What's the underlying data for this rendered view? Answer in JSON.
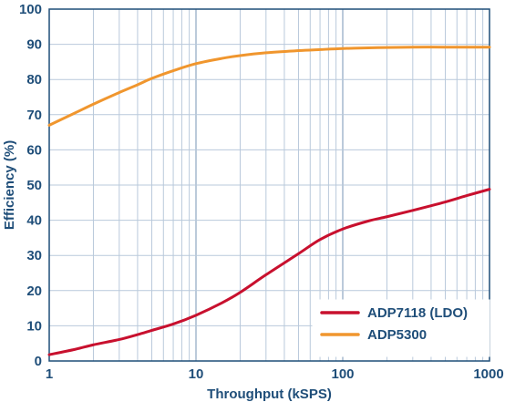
{
  "chart_data": {
    "type": "line",
    "xscale": "log",
    "xlim": [
      1,
      1000
    ],
    "ylim": [
      0,
      100
    ],
    "xlabel": "Throughput (kSPS)",
    "ylabel": "Efficiency (%)",
    "x_ticks": [
      "1",
      "10",
      "100",
      "1000"
    ],
    "y_ticks": [
      "0",
      "10",
      "20",
      "30",
      "40",
      "50",
      "60",
      "70",
      "80",
      "90",
      "100"
    ],
    "grid": true,
    "legend_position": "bottom-right",
    "series": [
      {
        "name": "ADP7118 (LDO)",
        "color": "#c8102e",
        "x": [
          1,
          1.5,
          2,
          3,
          4,
          5,
          7,
          10,
          15,
          20,
          30,
          50,
          70,
          100,
          150,
          200,
          300,
          500,
          700,
          1000
        ],
        "y": [
          1.8,
          3.3,
          4.6,
          6.1,
          7.5,
          8.7,
          10.5,
          13.0,
          16.5,
          19.5,
          24.5,
          30.5,
          34.5,
          37.5,
          39.8,
          41.0,
          42.8,
          45.2,
          47.0,
          48.8
        ]
      },
      {
        "name": "ADP5300",
        "color": "#f0962e",
        "x": [
          1,
          1.5,
          2,
          3,
          4,
          5,
          7,
          10,
          15,
          20,
          30,
          50,
          70,
          100,
          150,
          200,
          300,
          500,
          700,
          1000
        ],
        "y": [
          67.0,
          70.5,
          73.0,
          76.3,
          78.5,
          80.3,
          82.5,
          84.5,
          86.0,
          86.8,
          87.6,
          88.2,
          88.5,
          88.8,
          89.0,
          89.1,
          89.2,
          89.2,
          89.2,
          89.2
        ]
      }
    ]
  }
}
